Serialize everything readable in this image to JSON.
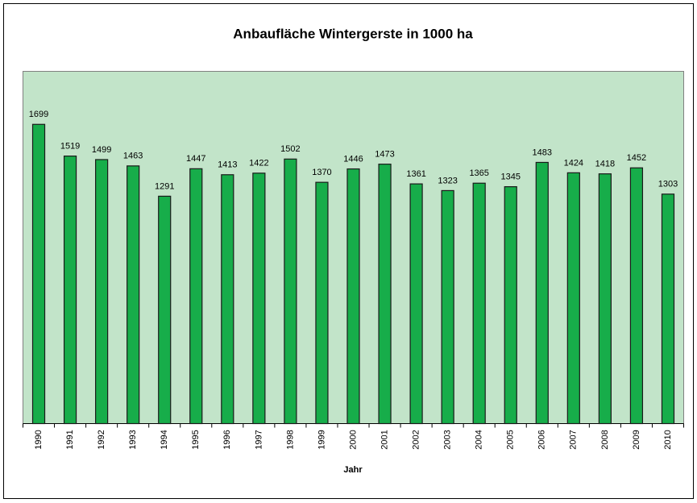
{
  "chart_data": {
    "type": "bar",
    "title": "Anbaufläche Wintergerste in 1000 ha",
    "x_label": "Jahr",
    "categories": [
      "1990",
      "1991",
      "1992",
      "1993",
      "1994",
      "1995",
      "1996",
      "1997",
      "1998",
      "1999",
      "2000",
      "2001",
      "2002",
      "2003",
      "2004",
      "2005",
      "2006",
      "2007",
      "2008",
      "2009",
      "2010"
    ],
    "values": [
      1699,
      1519,
      1499,
      1463,
      1291,
      1447,
      1413,
      1422,
      1502,
      1370,
      1446,
      1473,
      1361,
      1323,
      1365,
      1345,
      1483,
      1424,
      1418,
      1452,
      1303
    ],
    "color": "#17ad4a",
    "ylim": [
      0,
      2000
    ],
    "grid": false
  }
}
